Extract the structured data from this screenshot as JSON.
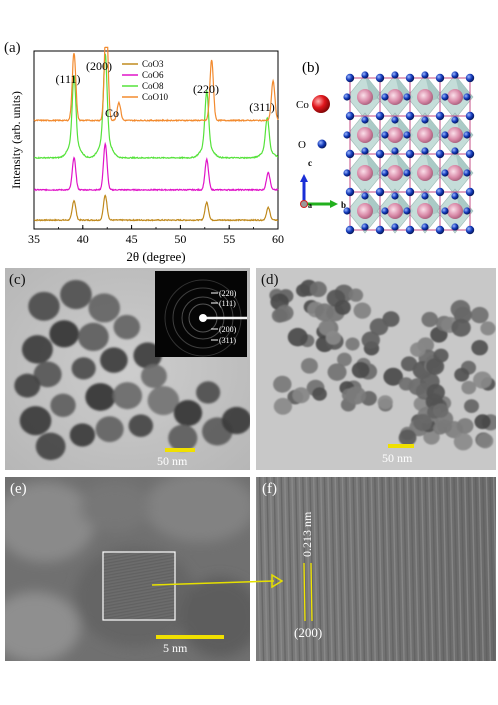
{
  "panels": {
    "a": {
      "label": "(a)",
      "chart_data": {
        "type": "line",
        "xlabel": "2θ (degree)",
        "ylabel": "Intensity (arb. units)",
        "xlim": [
          35,
          60
        ],
        "xticks": [
          35,
          40,
          45,
          50,
          55,
          60
        ],
        "series": [
          {
            "name": "CoO3",
            "color": "#c08a1e",
            "baseline": 0.05,
            "peaks": [
              [
                39.1,
                0.11
              ],
              [
                42.3,
                0.14
              ],
              [
                52.7,
                0.1
              ],
              [
                59.0,
                0.07
              ]
            ]
          },
          {
            "name": "CoO6",
            "color": "#e014c8",
            "baseline": 0.22,
            "peaks": [
              [
                39.1,
                0.18
              ],
              [
                42.3,
                0.26
              ],
              [
                52.7,
                0.17
              ],
              [
                59.0,
                0.1
              ]
            ]
          },
          {
            "name": "CoO8",
            "color": "#55e23a",
            "baseline": 0.4,
            "peaks": [
              [
                39.1,
                0.37
              ],
              [
                42.3,
                0.47
              ],
              [
                52.7,
                0.3
              ],
              [
                58.9,
                0.18
              ]
            ]
          },
          {
            "name": "CoO10",
            "color": "#f28a2e",
            "baseline": 0.61,
            "peaks": [
              [
                39.1,
                0.38
              ],
              [
                42.4,
                0.58
              ],
              [
                43.7,
                0.1
              ],
              [
                53.2,
                0.34
              ],
              [
                59.5,
                0.22
              ]
            ]
          }
        ],
        "annotations": [
          "(111)",
          "(200)",
          "Co",
          "(220)",
          "(311)"
        ]
      }
    },
    "b": {
      "label": "(b)",
      "legend": {
        "co": "Co",
        "o": "O"
      },
      "axes": {
        "a": "a",
        "b": "b",
        "c": "c"
      }
    },
    "c": {
      "label": "(c)",
      "scale": "50 nm",
      "saed_rings": [
        "(220)",
        "(111)",
        "(200)",
        "(311)"
      ]
    },
    "d": {
      "label": "(d)",
      "scale": "50 nm"
    },
    "e": {
      "label": "(e)",
      "scale": "5 nm"
    },
    "f": {
      "label": "(f)",
      "spacing": "0.213 nm",
      "plane": "(200)"
    }
  },
  "colors": {
    "scale_bar": "#f0e000",
    "arrow": "#e6e000"
  }
}
